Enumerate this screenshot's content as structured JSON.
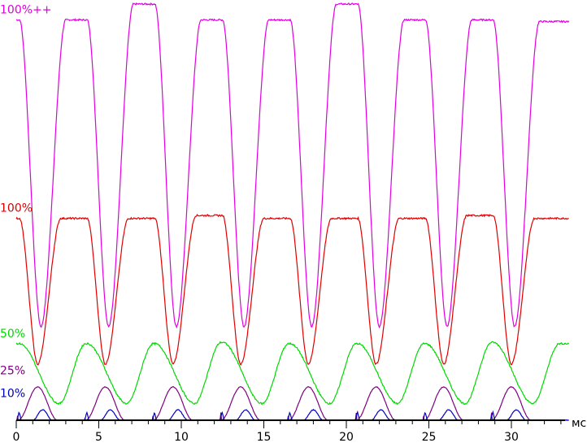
{
  "chart_data": {
    "type": "line",
    "xlabel": "мс",
    "xlim": [
      0,
      33.5
    ],
    "x_ticks": [
      {
        "value": 0,
        "label": "0"
      },
      {
        "value": 5,
        "label": "5"
      },
      {
        "value": 10,
        "label": "10"
      },
      {
        "value": 15,
        "label": "15"
      },
      {
        "value": 20,
        "label": "20"
      },
      {
        "value": 25,
        "label": "25"
      },
      {
        "value": 30,
        "label": "30"
      }
    ],
    "grid": false,
    "legend": "inline-left",
    "pulse_starts_ms": [
      0.2,
      4.3,
      8.4,
      12.5,
      16.6,
      20.7,
      24.8,
      28.9
    ],
    "series": [
      {
        "name": "100%++",
        "color": "#e000e0",
        "baseline": 0.962,
        "trough": 0.225,
        "trough_offset_ms": 1.3,
        "fall_ms": 0.9,
        "rise_ms": 1.5,
        "plateaus": [
          0.962,
          0.962,
          1.0,
          0.962,
          0.962,
          1.0,
          0.962,
          0.962
        ],
        "end_level": 0.958
      },
      {
        "name": "100%",
        "color": "#e00000",
        "baseline": 0.485,
        "trough": 0.135,
        "trough_offset_ms": 1.1,
        "fall_ms": 0.8,
        "rise_ms": 1.4,
        "plateaus": [
          0.485,
          0.485,
          0.485,
          0.492,
          0.485,
          0.485,
          0.485,
          0.492
        ],
        "end_level": 0.485
      },
      {
        "name": "50%",
        "color": "#00d800",
        "baseline": 0.184,
        "trough": 0.04,
        "trough_offset_ms": 2.4,
        "fall_ms": 1.0,
        "rise_ms": 1.6,
        "plateaus": [
          0.184,
          0.184,
          0.184,
          0.187,
          0.184,
          0.184,
          0.184,
          0.187
        ],
        "end_level": 0.184
      },
      {
        "name": "25%",
        "color": "#800080",
        "baseline": 0.0,
        "peak": 0.08,
        "peak_offset_ms": 1.1,
        "width_ms": 2.4,
        "lead_spike": 0.045
      },
      {
        "name": "10%",
        "color": "#0000c0",
        "baseline": 0.0,
        "peak": 0.025,
        "peak_offset_ms": 1.4,
        "width_ms": 1.2,
        "lead_spike": 0.02
      }
    ],
    "y_scale_note": "unlabelled relative brightness, 0 = axis, 1 = top"
  }
}
